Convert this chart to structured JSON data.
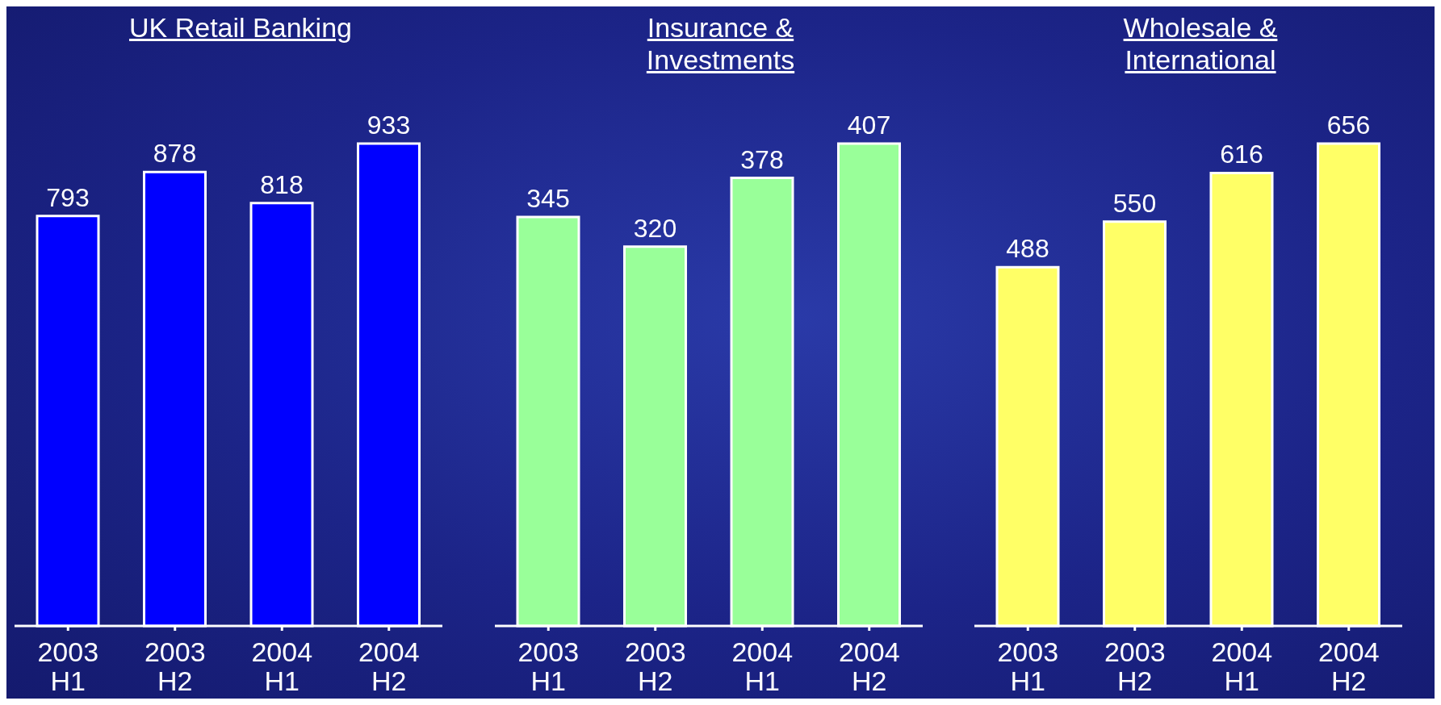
{
  "chart_data": [
    {
      "type": "bar",
      "title": "UK Retail Banking",
      "categories": [
        "2003 H1",
        "2003 H2",
        "2004 H1",
        "2004 H2"
      ],
      "values": [
        793,
        878,
        818,
        933
      ],
      "color": "#0000ff",
      "data_labels": true
    },
    {
      "type": "bar",
      "title": "Insurance & Investments",
      "categories": [
        "2003 H1",
        "2003 H2",
        "2004 H1",
        "2004 H2"
      ],
      "values": [
        345,
        320,
        378,
        407
      ],
      "color": "#99ff99",
      "data_labels": true
    },
    {
      "type": "bar",
      "title": "Wholesale & International",
      "categories": [
        "2003 H1",
        "2003 H2",
        "2004 H1",
        "2004 H2"
      ],
      "values": [
        488,
        550,
        616,
        656
      ],
      "color": "#ffff66",
      "data_labels": true
    }
  ]
}
